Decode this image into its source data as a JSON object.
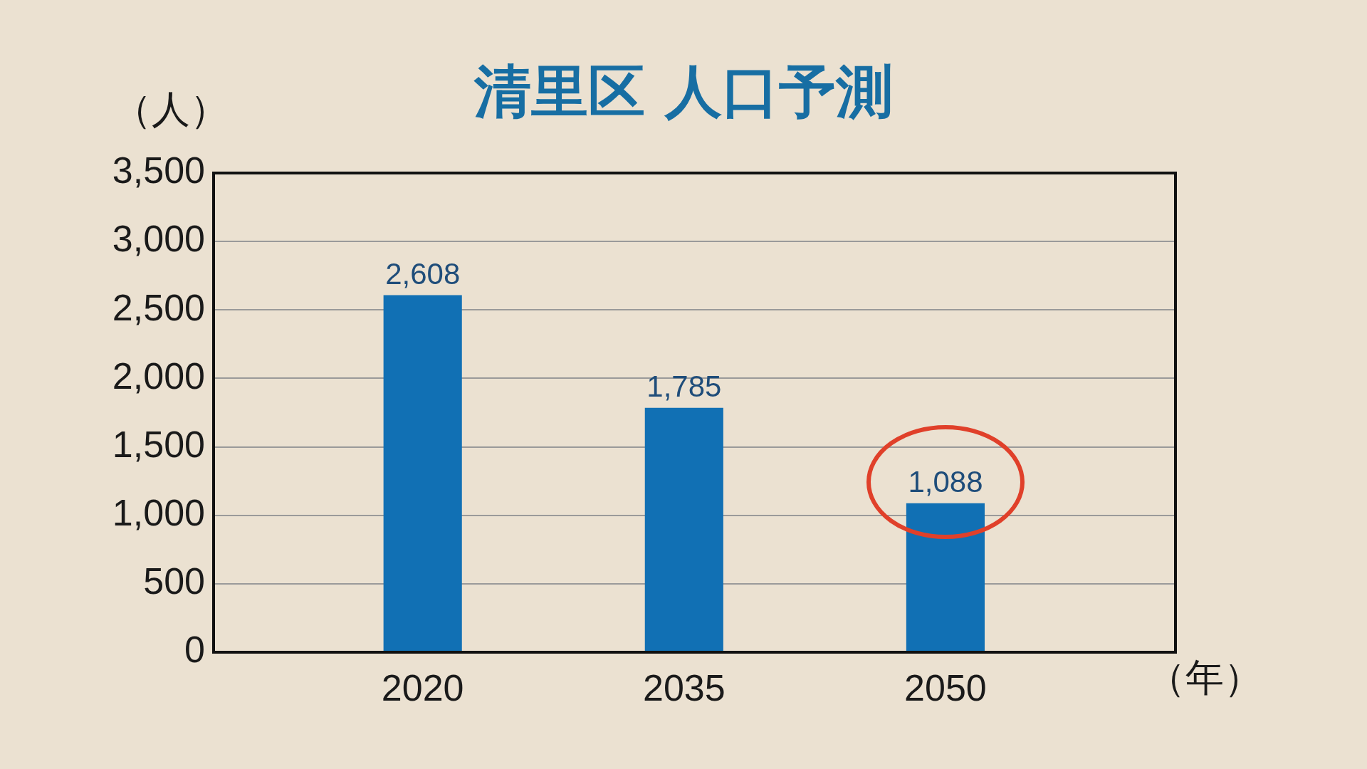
{
  "chart_data": {
    "type": "bar",
    "title": "清里区 人口予測",
    "ylabel": "（人）",
    "xlabel": "（年）",
    "categories": [
      "2020",
      "2035",
      "2050"
    ],
    "values": [
      2608,
      1785,
      1088
    ],
    "value_labels": [
      "2,608",
      "1,785",
      "1,088"
    ],
    "color": "#1170b4",
    "ylim": [
      0,
      3500
    ],
    "yticks": [
      0,
      500,
      {
        "value": 1000,
        "label": "1,000"
      },
      {
        "value": 1500,
        "label": "1,500"
      },
      {
        "value": 2000,
        "label": "2,000"
      },
      {
        "value": 2500,
        "label": "2,500"
      },
      {
        "value": 3000,
        "label": "3,000"
      },
      {
        "value": 3500,
        "label": "3,500"
      }
    ],
    "grid": "y"
  }
}
